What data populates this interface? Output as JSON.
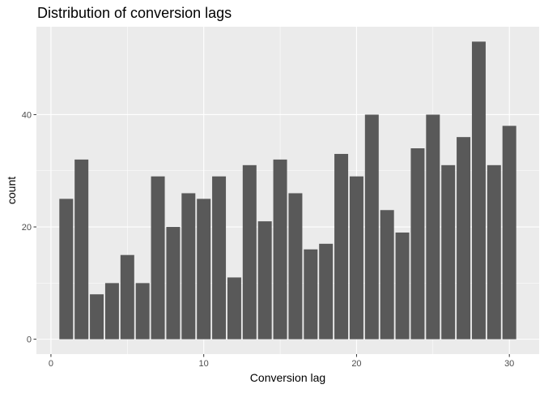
{
  "chart_data": {
    "type": "bar",
    "title": "Distribution of conversion lags",
    "xlabel": "Conversion lag",
    "ylabel": "count",
    "x": [
      1,
      2,
      3,
      4,
      5,
      6,
      7,
      8,
      9,
      10,
      11,
      12,
      13,
      14,
      15,
      16,
      17,
      18,
      19,
      20,
      21,
      22,
      23,
      24,
      25,
      26,
      27,
      28,
      29,
      30
    ],
    "values": [
      25,
      32,
      8,
      10,
      15,
      10,
      29,
      20,
      26,
      25,
      29,
      11,
      31,
      21,
      32,
      26,
      16,
      17,
      33,
      29,
      40,
      23,
      19,
      34,
      40,
      31,
      36,
      53,
      31,
      38
    ],
    "xlim": [
      -0.95,
      31.95
    ],
    "ylim": [
      -2.65,
      55.65
    ],
    "x_ticks": [
      0,
      10,
      20,
      30
    ],
    "y_ticks": [
      0,
      20,
      40
    ],
    "grid": true,
    "colors": {
      "bar": "#595959",
      "panel": "#EBEBEB",
      "grid_major": "#FFFFFF",
      "axis_text": "#4D4D4D",
      "tick": "#333333",
      "title": "#000000"
    }
  }
}
